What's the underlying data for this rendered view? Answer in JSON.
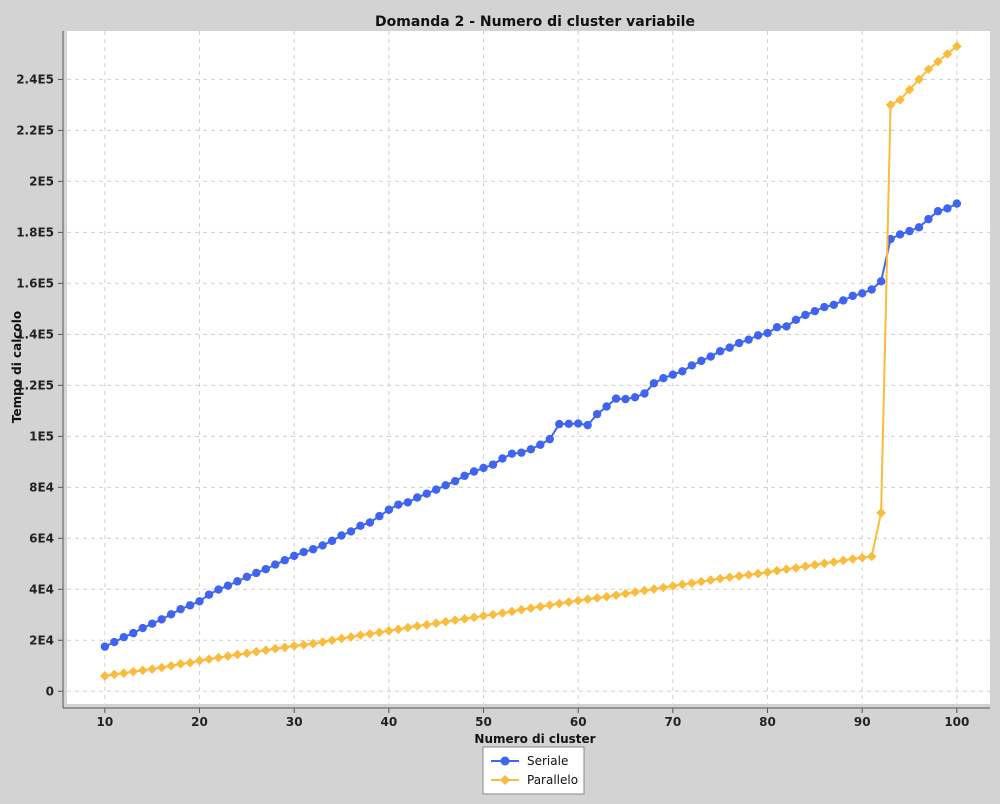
{
  "chart_data": {
    "type": "line",
    "title": "Domanda 2 - Numero di cluster variabile",
    "xlabel": "Numero di cluster",
    "ylabel": "Tempo di calcolo",
    "xlim": [
      6,
      103.5
    ],
    "ylim": [
      -5000,
      259000
    ],
    "x_ticks": [
      10,
      20,
      30,
      40,
      50,
      60,
      70,
      80,
      90,
      100
    ],
    "x_tick_labels": [
      "10",
      "20",
      "30",
      "40",
      "50",
      "60",
      "70",
      "80",
      "90",
      "100"
    ],
    "y_ticks": [
      0,
      20000,
      40000,
      60000,
      80000,
      100000,
      120000,
      140000,
      160000,
      180000,
      200000,
      220000,
      240000
    ],
    "y_tick_labels": [
      "0",
      "2E4",
      "4E4",
      "6E4",
      "8E4",
      "1E5",
      "1.2E5",
      "1.4E5",
      "1.6E5",
      "1.8E5",
      "2E5",
      "2.2E5",
      "2.4E5"
    ],
    "grid": true,
    "legend_position": "bottom-center",
    "x": [
      10,
      11,
      12,
      13,
      14,
      15,
      16,
      17,
      18,
      19,
      20,
      21,
      22,
      23,
      24,
      25,
      26,
      27,
      28,
      29,
      30,
      31,
      32,
      33,
      34,
      35,
      36,
      37,
      38,
      39,
      40,
      41,
      42,
      43,
      44,
      45,
      46,
      47,
      48,
      49,
      50,
      51,
      52,
      53,
      54,
      55,
      56,
      57,
      58,
      59,
      60,
      61,
      62,
      63,
      64,
      65,
      66,
      67,
      68,
      69,
      70,
      71,
      72,
      73,
      74,
      75,
      76,
      77,
      78,
      79,
      80,
      81,
      82,
      83,
      84,
      85,
      86,
      87,
      88,
      89,
      90,
      91,
      92,
      93,
      94,
      95,
      96,
      97,
      98,
      99,
      100
    ],
    "series": [
      {
        "name": "Seriale",
        "color": "#3f64f2",
        "marker": "circle",
        "values": [
          17500,
          19300,
          21200,
          22800,
          24800,
          26500,
          28200,
          30200,
          32200,
          33700,
          35300,
          37900,
          39900,
          41400,
          43100,
          44900,
          46400,
          47900,
          49700,
          51400,
          53100,
          54600,
          55700,
          57200,
          59000,
          61100,
          62700,
          64900,
          66200,
          68700,
          71200,
          73200,
          74100,
          76000,
          77500,
          79100,
          80800,
          82400,
          84500,
          86200,
          87600,
          88900,
          91300,
          93200,
          93600,
          94900,
          96700,
          98900,
          104800,
          104900,
          105000,
          104400,
          108700,
          111700,
          114800,
          114600,
          115300,
          116800,
          120800,
          122800,
          124200,
          125500,
          127800,
          129600,
          131300,
          133400,
          134800,
          136600,
          137900,
          139600,
          140500,
          142800,
          143100,
          145700,
          147600,
          149100,
          150700,
          151600,
          153300,
          155100,
          156100,
          157600,
          160800,
          177400,
          179200,
          180500,
          182000,
          185200,
          188300,
          189400,
          191300
        ]
      },
      {
        "name": "Parallelo",
        "color": "#fbbb3b",
        "marker": "diamond",
        "values": [
          6000,
          6600,
          7100,
          7700,
          8200,
          8700,
          9300,
          10000,
          10700,
          11200,
          12000,
          12600,
          13200,
          13800,
          14400,
          14900,
          15500,
          16100,
          16700,
          17200,
          17800,
          18200,
          18700,
          19300,
          20000,
          20700,
          21300,
          22000,
          22500,
          23100,
          23700,
          24300,
          25000,
          25600,
          26100,
          26700,
          27300,
          27900,
          28400,
          29000,
          29600,
          30100,
          30700,
          31300,
          32000,
          32600,
          33200,
          33800,
          34400,
          35000,
          35600,
          36100,
          36600,
          37100,
          37700,
          38300,
          38900,
          39500,
          40100,
          40700,
          41300,
          41900,
          42400,
          43000,
          43600,
          44200,
          44700,
          45200,
          45700,
          46100,
          46700,
          47300,
          47900,
          48400,
          49000,
          49600,
          50200,
          50700,
          51300,
          51900,
          52400,
          52900,
          70000,
          230000,
          232000,
          236000,
          240000,
          244000,
          247000,
          250000,
          253000
        ]
      }
    ]
  }
}
